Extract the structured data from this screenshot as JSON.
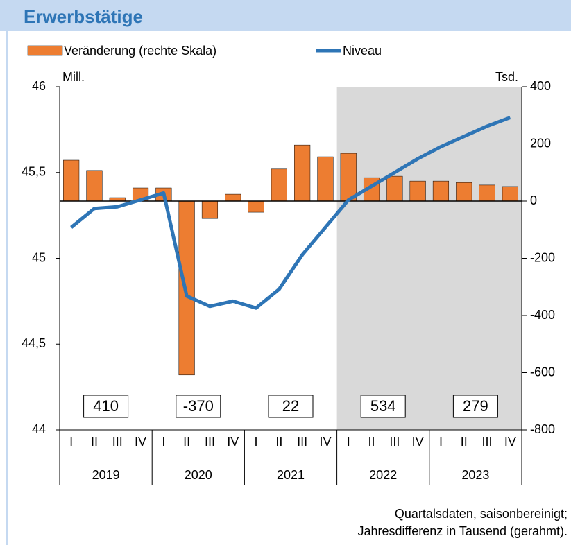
{
  "chart_data": {
    "type": "bar-line",
    "title": "Erwerbstätige",
    "ylabel": "Mill.",
    "y2label": "Tsd.",
    "categories": [
      "I",
      "II",
      "III",
      "IV",
      "I",
      "II",
      "III",
      "IV",
      "I",
      "II",
      "III",
      "IV",
      "I",
      "II",
      "III",
      "IV",
      "I",
      "II",
      "III",
      "IV"
    ],
    "years": [
      "2019",
      "2020",
      "2021",
      "2022",
      "2023"
    ],
    "annual_differences": [
      410,
      -370,
      22,
      534,
      279
    ],
    "shade_from": "2022",
    "series": [
      {
        "name": "Veränderung (rechte Skala)",
        "type": "bar",
        "axis": "y2",
        "color": "#ed7d31",
        "values": [
          143,
          107,
          12,
          46,
          46,
          -608,
          -61,
          24,
          -39,
          112,
          196,
          155,
          167,
          82,
          87,
          70,
          70,
          65,
          56,
          51
        ]
      },
      {
        "name": "Niveau",
        "type": "line",
        "color": "#2e75b6",
        "values": [
          45.18,
          45.29,
          45.3,
          45.34,
          45.38,
          44.78,
          44.72,
          44.75,
          44.71,
          44.82,
          45.02,
          45.18,
          45.34,
          45.42,
          45.5,
          45.58,
          45.65,
          45.71,
          45.77,
          45.82
        ]
      }
    ],
    "ylim": [
      44,
      46
    ],
    "yticks": [
      44,
      {
        "value": 44.5,
        "label": "44,5"
      },
      45,
      {
        "value": 45.5,
        "label": "45,5"
      },
      46
    ],
    "y2lim": [
      -800,
      400
    ],
    "y2ticks": [
      -800,
      -600,
      -400,
      -200,
      0,
      200,
      400
    ],
    "footnote": [
      "Quartalsdaten, saisonbereinigt;",
      "Jahresdifferenz in Tausend (gerahmt)."
    ]
  }
}
